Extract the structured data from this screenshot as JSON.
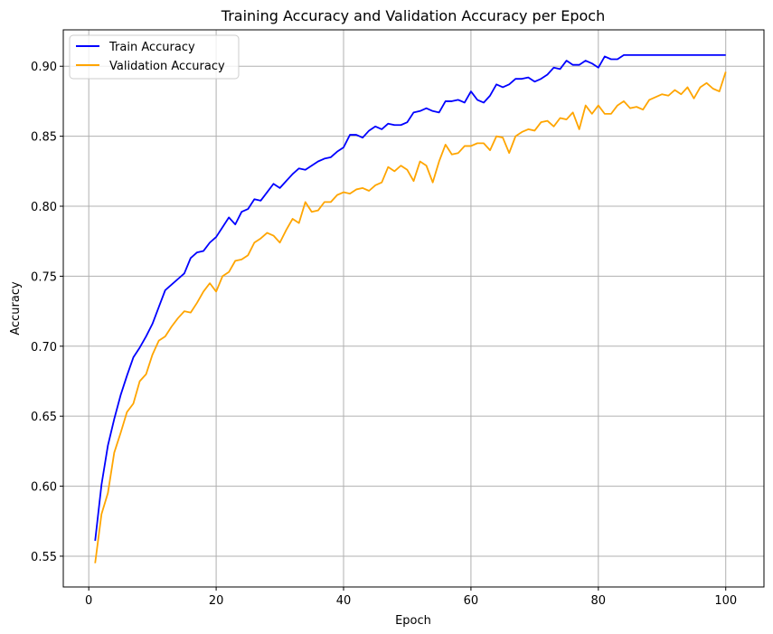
{
  "chart_data": {
    "type": "line",
    "title": "Training Accuracy and Validation Accuracy per Epoch",
    "xlabel": "Epoch",
    "ylabel": "Accuracy",
    "xlim": [
      -4,
      106
    ],
    "ylim": [
      0.528,
      0.926
    ],
    "xticks": [
      0,
      20,
      40,
      60,
      80,
      100
    ],
    "yticks": [
      0.55,
      0.6,
      0.65,
      0.7,
      0.75,
      0.8,
      0.85,
      0.9
    ],
    "ytick_labels": [
      "0.55",
      "0.60",
      "0.65",
      "0.70",
      "0.75",
      "0.80",
      "0.85",
      "0.90"
    ],
    "grid": true,
    "legend_position": "top-left",
    "x": [
      1,
      2,
      3,
      4,
      5,
      6,
      7,
      8,
      9,
      10,
      11,
      12,
      13,
      14,
      15,
      16,
      17,
      18,
      19,
      20,
      21,
      22,
      23,
      24,
      25,
      26,
      27,
      28,
      29,
      30,
      31,
      32,
      33,
      34,
      35,
      36,
      37,
      38,
      39,
      40,
      41,
      42,
      43,
      44,
      45,
      46,
      47,
      48,
      49,
      50,
      51,
      52,
      53,
      54,
      55,
      56,
      57,
      58,
      59,
      60,
      61,
      62,
      63,
      64,
      65,
      66,
      67,
      68,
      69,
      70,
      71,
      72,
      73,
      74,
      75,
      76,
      77,
      78,
      79,
      80,
      81,
      82,
      83,
      84,
      85,
      86,
      87,
      88,
      89,
      90,
      91,
      92,
      93,
      94,
      95,
      96,
      97,
      98,
      99,
      100
    ],
    "series": [
      {
        "name": "Train Accuracy",
        "color": "#0000ff",
        "values": [
          0.561,
          0.601,
          0.629,
          0.648,
          0.665,
          0.679,
          0.692,
          0.699,
          0.707,
          0.716,
          0.728,
          0.74,
          0.744,
          0.748,
          0.752,
          0.763,
          0.767,
          0.768,
          0.774,
          0.778,
          0.785,
          0.792,
          0.787,
          0.796,
          0.798,
          0.805,
          0.804,
          0.81,
          0.816,
          0.813,
          0.818,
          0.823,
          0.827,
          0.826,
          0.829,
          0.832,
          0.834,
          0.835,
          0.839,
          0.842,
          0.851,
          0.851,
          0.849,
          0.854,
          0.857,
          0.855,
          0.859,
          0.858,
          0.858,
          0.86,
          0.867,
          0.868,
          0.87,
          0.868,
          0.867,
          0.875,
          0.875,
          0.876,
          0.874,
          0.882,
          0.876,
          0.874,
          0.879,
          0.887,
          0.885,
          0.887,
          0.891,
          0.891,
          0.892,
          0.889,
          0.891,
          0.894,
          0.899,
          0.898,
          0.904,
          0.901,
          0.901,
          0.904,
          0.902,
          0.899,
          0.907,
          0.905,
          0.905,
          0.908,
          0.908,
          0.908,
          0.908,
          0.908,
          0.908,
          0.908,
          0.908,
          0.908,
          0.908,
          0.908,
          0.908,
          0.908,
          0.908,
          0.908,
          0.908,
          0.908
        ]
      },
      {
        "name": "Validation Accuracy",
        "color": "#ffa500",
        "values": [
          0.545,
          0.58,
          0.595,
          0.624,
          0.638,
          0.653,
          0.659,
          0.675,
          0.68,
          0.694,
          0.704,
          0.707,
          0.714,
          0.72,
          0.725,
          0.724,
          0.731,
          0.739,
          0.745,
          0.739,
          0.75,
          0.753,
          0.761,
          0.762,
          0.765,
          0.774,
          0.777,
          0.781,
          0.779,
          0.774,
          0.783,
          0.791,
          0.788,
          0.803,
          0.796,
          0.797,
          0.803,
          0.803,
          0.808,
          0.81,
          0.809,
          0.812,
          0.813,
          0.811,
          0.815,
          0.817,
          0.828,
          0.825,
          0.829,
          0.826,
          0.818,
          0.832,
          0.829,
          0.817,
          0.832,
          0.844,
          0.837,
          0.838,
          0.843,
          0.843,
          0.845,
          0.845,
          0.84,
          0.85,
          0.849,
          0.838,
          0.85,
          0.853,
          0.855,
          0.854,
          0.86,
          0.861,
          0.857,
          0.863,
          0.862,
          0.867,
          0.855,
          0.872,
          0.866,
          0.872,
          0.866,
          0.866,
          0.872,
          0.875,
          0.87,
          0.871,
          0.869,
          0.876,
          0.878,
          0.88,
          0.879,
          0.883,
          0.88,
          0.885,
          0.877,
          0.885,
          0.888,
          0.884,
          0.882,
          0.896
        ]
      }
    ]
  }
}
